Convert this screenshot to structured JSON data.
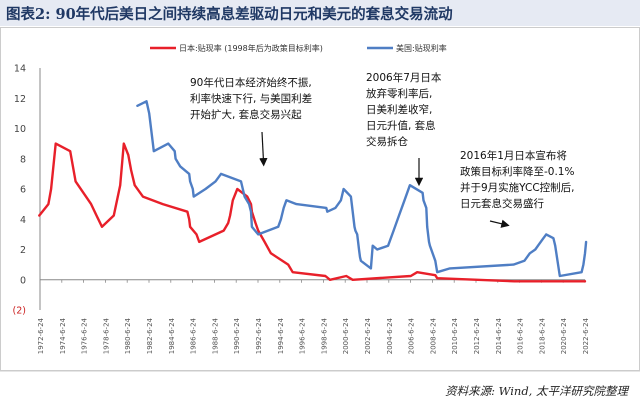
{
  "header": {
    "title": "图表2: 90年代后美日之间持续高息差驱动日元和美元的套息交易流动",
    "source": "资料来源: Wind, 太平洋研究院整理"
  },
  "colors": {
    "title_bar": "#1f3864",
    "japan_series": "#e8202a",
    "us_series": "#4f7ec4",
    "axis": "#888888",
    "arrow": "#111111"
  },
  "chart_data": {
    "type": "line",
    "x_type": "date",
    "ylim": [
      -2,
      14
    ],
    "yticks": [
      0,
      2,
      4,
      6,
      8,
      10,
      12,
      14
    ],
    "ytick_labels": [
      "0",
      "2",
      "4",
      "6",
      "8",
      "10",
      "12",
      "14"
    ],
    "ytick_neg_label": "(2)",
    "xtick_labels": [
      "1972-6-24",
      "1974-6-24",
      "1976-6-24",
      "1978-6-24",
      "1980-6-24",
      "1982-6-24",
      "1984-6-24",
      "1986-6-24",
      "1988-6-24",
      "1990-6-24",
      "1992-6-24",
      "1994-6-24",
      "1996-6-24",
      "1998-6-24",
      "2000-6-24",
      "2002-6-24",
      "2004-6-24",
      "2006-6-24",
      "2008-6-24",
      "2010-6-24",
      "2012-6-24",
      "2014-6-24",
      "2016-6-24",
      "2018-6-24",
      "2020-6-24",
      "2022-6-24"
    ],
    "xlim": [
      "1972-06-24",
      "2022-06-24"
    ],
    "grid": false,
    "legend_position": "top",
    "series": [
      {
        "name": "日本:贴现率 (1998年后为政策目标利率)",
        "color": "#e8202a",
        "points": [
          [
            "1972-06-01",
            4.25
          ],
          [
            "1973-04-01",
            5.0
          ],
          [
            "1973-07-01",
            6.0
          ],
          [
            "1973-12-01",
            9.0
          ],
          [
            "1975-04-01",
            8.5
          ],
          [
            "1975-10-01",
            6.5
          ],
          [
            "1977-03-01",
            5.0
          ],
          [
            "1977-09-01",
            4.25
          ],
          [
            "1978-03-01",
            3.5
          ],
          [
            "1979-04-01",
            4.25
          ],
          [
            "1979-11-01",
            6.25
          ],
          [
            "1980-03-01",
            9.0
          ],
          [
            "1980-08-01",
            8.25
          ],
          [
            "1980-11-01",
            7.25
          ],
          [
            "1981-03-01",
            6.25
          ],
          [
            "1981-12-01",
            5.5
          ],
          [
            "1983-10-01",
            5.0
          ],
          [
            "1986-01-01",
            4.5
          ],
          [
            "1986-03-01",
            4.0
          ],
          [
            "1986-04-01",
            3.5
          ],
          [
            "1986-11-01",
            3.0
          ],
          [
            "1987-02-01",
            2.5
          ],
          [
            "1989-05-01",
            3.25
          ],
          [
            "1989-10-01",
            3.75
          ],
          [
            "1989-12-01",
            4.25
          ],
          [
            "1990-03-01",
            5.25
          ],
          [
            "1990-08-01",
            6.0
          ],
          [
            "1991-07-01",
            5.5
          ],
          [
            "1991-11-01",
            5.0
          ],
          [
            "1991-12-01",
            4.5
          ],
          [
            "1992-04-01",
            3.75
          ],
          [
            "1992-07-01",
            3.25
          ],
          [
            "1993-02-01",
            2.5
          ],
          [
            "1993-09-01",
            1.75
          ],
          [
            "1995-04-01",
            1.0
          ],
          [
            "1995-09-01",
            0.5
          ],
          [
            "1998-09-01",
            0.25
          ],
          [
            "1999-02-01",
            0.0
          ],
          [
            "2000-08-01",
            0.25
          ],
          [
            "2001-03-01",
            0.0
          ],
          [
            "2006-07-01",
            0.25
          ],
          [
            "2007-02-01",
            0.5
          ],
          [
            "2008-10-01",
            0.3
          ],
          [
            "2008-12-01",
            0.1
          ],
          [
            "2016-01-01",
            -0.1
          ],
          [
            "2022-06-24",
            -0.1
          ]
        ]
      },
      {
        "name": "美国:贴现利率",
        "color": "#4f7ec4",
        "points": [
          [
            "1981-06-01",
            11.5
          ],
          [
            "1982-04-01",
            11.8
          ],
          [
            "1982-07-01",
            11.0
          ],
          [
            "1982-11-01",
            9.0
          ],
          [
            "1982-12-01",
            8.5
          ],
          [
            "1984-04-01",
            9.0
          ],
          [
            "1984-11-01",
            8.5
          ],
          [
            "1984-12-01",
            8.0
          ],
          [
            "1985-05-01",
            7.5
          ],
          [
            "1986-03-01",
            7.0
          ],
          [
            "1986-04-01",
            6.5
          ],
          [
            "1986-07-01",
            6.0
          ],
          [
            "1986-08-01",
            5.5
          ],
          [
            "1987-09-01",
            6.0
          ],
          [
            "1988-08-01",
            6.5
          ],
          [
            "1989-02-01",
            7.0
          ],
          [
            "1990-12-01",
            6.5
          ],
          [
            "1991-02-01",
            6.0
          ],
          [
            "1991-04-01",
            5.5
          ],
          [
            "1991-09-01",
            5.0
          ],
          [
            "1991-11-01",
            4.5
          ],
          [
            "1991-12-01",
            3.5
          ],
          [
            "1992-07-01",
            3.0
          ],
          [
            "1994-05-01",
            3.5
          ],
          [
            "1994-08-01",
            4.0
          ],
          [
            "1994-11-01",
            4.75
          ],
          [
            "1995-02-01",
            5.25
          ],
          [
            "1996-01-01",
            5.0
          ],
          [
            "1998-10-01",
            4.75
          ],
          [
            "1998-11-01",
            4.5
          ],
          [
            "1999-08-01",
            4.75
          ],
          [
            "1999-11-01",
            5.0
          ],
          [
            "2000-02-01",
            5.25
          ],
          [
            "2000-03-01",
            5.5
          ],
          [
            "2000-05-01",
            6.0
          ],
          [
            "2001-01-01",
            5.5
          ],
          [
            "2001-03-01",
            4.5
          ],
          [
            "2001-05-01",
            3.5
          ],
          [
            "2001-06-01",
            3.25
          ],
          [
            "2001-08-01",
            3.0
          ],
          [
            "2001-09-01",
            2.5
          ],
          [
            "2001-10-01",
            2.0
          ],
          [
            "2001-11-01",
            1.5
          ],
          [
            "2001-12-01",
            1.25
          ],
          [
            "2002-11-01",
            0.75
          ],
          [
            "2003-01-01",
            2.25
          ],
          [
            "2003-06-01",
            2.0
          ],
          [
            "2004-06-01",
            2.25
          ],
          [
            "2004-12-01",
            3.25
          ],
          [
            "2005-06-01",
            4.25
          ],
          [
            "2005-12-01",
            5.25
          ],
          [
            "2006-06-01",
            6.25
          ],
          [
            "2007-08-01",
            5.75
          ],
          [
            "2007-09-01",
            5.25
          ],
          [
            "2007-12-01",
            4.75
          ],
          [
            "2008-01-01",
            3.5
          ],
          [
            "2008-03-01",
            2.5
          ],
          [
            "2008-04-01",
            2.25
          ],
          [
            "2008-10-01",
            1.25
          ],
          [
            "2008-12-01",
            0.5
          ],
          [
            "2010-02-01",
            0.75
          ],
          [
            "2015-12-01",
            1.0
          ],
          [
            "2016-12-01",
            1.25
          ],
          [
            "2017-03-01",
            1.5
          ],
          [
            "2017-06-01",
            1.75
          ],
          [
            "2017-12-01",
            2.0
          ],
          [
            "2018-03-01",
            2.25
          ],
          [
            "2018-06-01",
            2.5
          ],
          [
            "2018-09-01",
            2.75
          ],
          [
            "2018-12-01",
            3.0
          ],
          [
            "2019-08-01",
            2.75
          ],
          [
            "2019-09-01",
            2.5
          ],
          [
            "2019-10-01",
            2.25
          ],
          [
            "2020-03-01",
            0.25
          ],
          [
            "2022-03-01",
            0.5
          ],
          [
            "2022-05-01",
            1.0
          ],
          [
            "2022-06-24",
            1.75
          ],
          [
            "2022-08-01",
            2.5
          ]
        ]
      }
    ],
    "annotations": [
      {
        "lines": [
          "90年代日本经济始终不振,",
          "利率快速下行, 与美国利差",
          "开始扩大, 套息交易兴起"
        ],
        "arrow_to": [
          "1993-01-01",
          7.6
        ]
      },
      {
        "lines": [
          "2006年7月日本",
          "放弃零利率后,",
          "日美利差收窄,",
          "日元升值, 套息",
          "交易拆仓"
        ],
        "arrow_to": [
          "2007-04-01",
          6.3
        ]
      },
      {
        "lines": [
          "2016年1月日本宣布将",
          "政策目标利率降至-0.1%",
          "并于9月实施YCC控制后,",
          "日元套息交易盛行"
        ],
        "arrow_to": [
          "2015-06-01",
          3.6
        ]
      }
    ]
  }
}
